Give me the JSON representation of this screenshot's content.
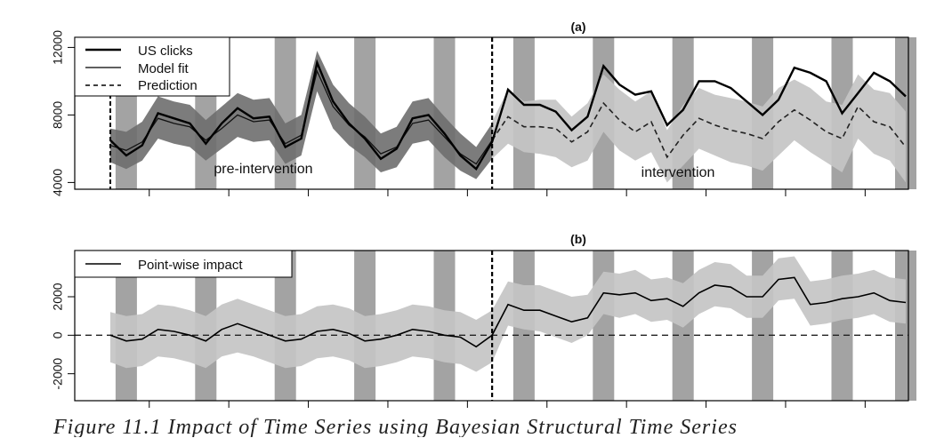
{
  "chart_data": [
    {
      "type": "line",
      "panel": "(a)",
      "title": "(a)",
      "ylim": [
        3600,
        12600
      ],
      "yticks": [
        4000,
        8000,
        12000
      ],
      "ytick_labels": [
        "4000",
        "8000",
        "12000"
      ],
      "n": 51,
      "intervention_index": 24,
      "weekend_indices": [
        1,
        6,
        11,
        16,
        21,
        26,
        31,
        36,
        41,
        46,
        50
      ],
      "legend": [
        "US clicks",
        "Model fit",
        "Prediction"
      ],
      "legend_position": "top-left",
      "annotations": [
        "pre-intervention",
        "intervention"
      ],
      "series": [
        {
          "name": "US clicks",
          "style": "solid-thick",
          "values": [
            6500,
            5600,
            6200,
            8100,
            7800,
            7500,
            6300,
            7500,
            8400,
            7800,
            7900,
            6100,
            6600,
            11100,
            8800,
            7500,
            6600,
            5400,
            6000,
            7800,
            8000,
            6900,
            5600,
            4800,
            6400,
            9500,
            8600,
            8600,
            8200,
            7100,
            7900,
            10900,
            9800,
            9200,
            9400,
            7400,
            8300,
            10000,
            10000,
            9600,
            8800,
            8000,
            8900,
            10800,
            10500,
            10000,
            8100,
            9300,
            10500,
            10000,
            9100
          ]
        },
        {
          "name": "Model fit",
          "style": "solid-thin",
          "values": [
            6200,
            5900,
            6400,
            7800,
            7500,
            7300,
            6500,
            7200,
            8000,
            7600,
            7700,
            6300,
            6800,
            10600,
            8500,
            7400,
            6700,
            5700,
            6100,
            7500,
            7700,
            6700,
            5700,
            5100,
            6500
          ]
        },
        {
          "name": "Prediction",
          "style": "dashed",
          "values": [
            null,
            null,
            null,
            null,
            null,
            null,
            null,
            null,
            null,
            null,
            null,
            null,
            null,
            null,
            null,
            null,
            null,
            null,
            null,
            null,
            null,
            null,
            null,
            null,
            6500,
            7900,
            7300,
            7300,
            7200,
            6400,
            7000,
            8700,
            7700,
            7000,
            7600,
            5500,
            6800,
            7800,
            7400,
            7100,
            6900,
            6600,
            7600,
            8300,
            7700,
            7000,
            6600,
            8500,
            7600,
            7300,
            6100
          ]
        }
      ],
      "band_fit": {
        "lower": [
          5200,
          4800,
          5300,
          6600,
          6300,
          6100,
          5300,
          6000,
          6700,
          6400,
          6500,
          5100,
          5600,
          9400,
          7200,
          6200,
          5500,
          4600,
          4900,
          6300,
          6500,
          5500,
          4700,
          4200,
          5400
        ],
        "upper": [
          7200,
          7000,
          7600,
          9100,
          8800,
          8600,
          7700,
          8500,
          9300,
          8900,
          9000,
          7500,
          8000,
          11800,
          9800,
          8700,
          7900,
          6900,
          7300,
          8800,
          9000,
          7900,
          6900,
          6100,
          7500
        ]
      },
      "band_prediction": {
        "lower": [
          null,
          null,
          null,
          null,
          null,
          null,
          null,
          null,
          null,
          null,
          null,
          null,
          null,
          null,
          null,
          null,
          null,
          null,
          null,
          null,
          null,
          null,
          null,
          null,
          5400,
          6300,
          5800,
          5700,
          5500,
          4900,
          5300,
          7000,
          5900,
          5300,
          5800,
          4000,
          5000,
          6000,
          5600,
          5200,
          5000,
          4700,
          5600,
          6500,
          5800,
          5200,
          4600,
          6600,
          5700,
          5300,
          4000
        ],
        "upper": [
          null,
          null,
          null,
          null,
          null,
          null,
          null,
          null,
          null,
          null,
          null,
          null,
          null,
          null,
          null,
          null,
          null,
          null,
          null,
          null,
          null,
          null,
          null,
          null,
          7600,
          9500,
          8800,
          8900,
          8900,
          7900,
          8700,
          10400,
          9500,
          8800,
          9400,
          7100,
          8600,
          9600,
          9200,
          9000,
          8800,
          8500,
          9600,
          10100,
          9600,
          8800,
          8600,
          10400,
          9500,
          9300,
          8200
        ]
      }
    },
    {
      "type": "line",
      "panel": "(b)",
      "title": "(b)",
      "ylim": [
        -3400,
        4400
      ],
      "yticks": [
        -2000,
        0,
        2000
      ],
      "ytick_labels": [
        "-2000",
        "0",
        "2000"
      ],
      "n": 51,
      "intervention_index": 24,
      "weekend_indices": [
        1,
        6,
        11,
        16,
        21,
        26,
        31,
        36,
        41,
        46,
        50
      ],
      "legend": [
        "Point-wise impact"
      ],
      "legend_position": "top-left",
      "hline": 0,
      "series": [
        {
          "name": "Point-wise impact",
          "style": "solid",
          "values": [
            0,
            -300,
            -200,
            300,
            200,
            0,
            -300,
            300,
            600,
            300,
            0,
            -300,
            -200,
            200,
            300,
            100,
            -300,
            -200,
            0,
            300,
            200,
            0,
            -100,
            -600,
            0,
            1600,
            1300,
            1300,
            1000,
            700,
            900,
            2200,
            2100,
            2200,
            1800,
            1900,
            1500,
            2200,
            2600,
            2500,
            2000,
            2000,
            2900,
            3000,
            1600,
            1700,
            1900,
            2000,
            2200,
            1800,
            1700
          ]
        }
      ],
      "band": {
        "lower": [
          -1400,
          -1700,
          -1600,
          -1100,
          -1200,
          -1400,
          -1700,
          -1100,
          -900,
          -1100,
          -1400,
          -1700,
          -1600,
          -1200,
          -1100,
          -1300,
          -1700,
          -1600,
          -1400,
          -1100,
          -1200,
          -1400,
          -1500,
          -1900,
          -1400,
          500,
          300,
          200,
          -100,
          -400,
          0,
          1100,
          900,
          1100,
          700,
          800,
          400,
          1100,
          1500,
          1400,
          900,
          900,
          1800,
          1900,
          500,
          600,
          800,
          900,
          1100,
          700,
          600
        ],
        "upper": [
          1200,
          1000,
          1100,
          1600,
          1500,
          1300,
          1000,
          1600,
          1900,
          1600,
          1300,
          1000,
          1100,
          1500,
          1600,
          1400,
          1000,
          1100,
          1300,
          1600,
          1500,
          1300,
          1200,
          800,
          1300,
          2800,
          2600,
          2600,
          2300,
          2000,
          2100,
          3300,
          3200,
          3400,
          2900,
          3000,
          2700,
          3400,
          3800,
          3700,
          3100,
          3100,
          4000,
          4100,
          2800,
          2900,
          3100,
          3200,
          3400,
          3000,
          2900
        ]
      }
    }
  ],
  "caption": "Figure 11.1 Impact of Time Series using Bayesian Structural Time Series"
}
